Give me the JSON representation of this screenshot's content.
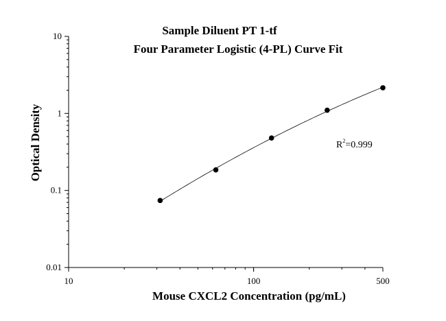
{
  "chart_data": {
    "type": "scatter",
    "title": "Sample Diluent PT 1-tf",
    "subtitle": "Four Parameter Logistic (4-PL) Curve Fit",
    "xlabel": "Mouse CXCL2 Concentration (pg/mL)",
    "ylabel": "Optical Density",
    "x_scale": "log",
    "y_scale": "log",
    "xlim": [
      10,
      500
    ],
    "ylim": [
      0.01,
      10
    ],
    "x_ticks": [
      "10",
      "100",
      "500"
    ],
    "x_tick_values": [
      10,
      100,
      500
    ],
    "y_ticks": [
      "10",
      "1",
      "0.1",
      "0.01"
    ],
    "y_tick_values": [
      10,
      1,
      0.1,
      0.01
    ],
    "series": [
      {
        "points": [
          {
            "x": 31.25,
            "y": 0.074
          },
          {
            "x": 62.5,
            "y": 0.185
          },
          {
            "x": 125,
            "y": 0.48
          },
          {
            "x": 250,
            "y": 1.1
          },
          {
            "x": 500,
            "y": 2.15
          }
        ],
        "fit": "4-PL"
      }
    ],
    "annotation": {
      "text_base": "R",
      "superscript": "2",
      "text_rest": "=0.999"
    }
  }
}
